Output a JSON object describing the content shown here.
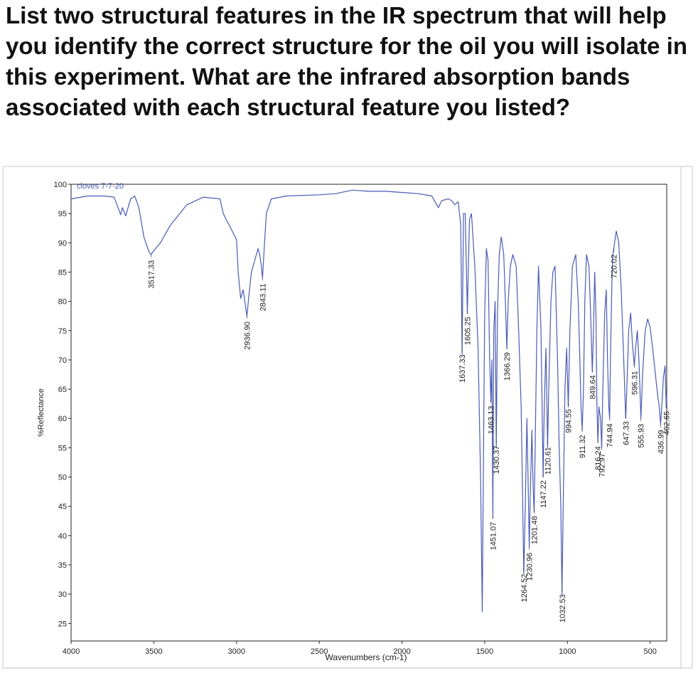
{
  "question": "List two structural features in the IR spectrum that will help you identify the correct structure for the oil you will isolate in this experiment. What are the infrared absorption bands associated with each structural feature you listed?",
  "colors": {
    "trace": "#4a5bb5",
    "axis": "#222222",
    "sample_label": "#4a5bb5",
    "frame": "#d9d9d9"
  },
  "chart_data": {
    "type": "line",
    "sample_label": "cloves 7-7-20",
    "xlabel": "Wavenumbers (cm-1)",
    "ylabel": "%Reflectance",
    "xlim": [
      4000,
      400
    ],
    "ylim": [
      22,
      100
    ],
    "x_reversed": true,
    "grid": false,
    "x_ticks": [
      4000,
      3500,
      3000,
      2500,
      2000,
      1500,
      1000,
      500
    ],
    "y_ticks": [
      100,
      95,
      90,
      85,
      80,
      75,
      70,
      65,
      60,
      55,
      50,
      45,
      40,
      35,
      30,
      25
    ],
    "peak_labels": [
      {
        "wn": 3517.33,
        "label": "3517.33"
      },
      {
        "wn": 2936.9,
        "label": "2936.90"
      },
      {
        "wn": 2843.11,
        "label": "2843.11"
      },
      {
        "wn": 1637.33,
        "label": "1637.33"
      },
      {
        "wn": 1605.25,
        "label": "1605.25"
      },
      {
        "wn": 1463.13,
        "label": "1463.13"
      },
      {
        "wn": 1451.07,
        "label": "1451.07"
      },
      {
        "wn": 1430.37,
        "label": "1430.37"
      },
      {
        "wn": 1366.29,
        "label": "1366.29"
      },
      {
        "wn": 1264.52,
        "label": "1264.52"
      },
      {
        "wn": 1230.96,
        "label": "1230.96"
      },
      {
        "wn": 1201.48,
        "label": "1201.48"
      },
      {
        "wn": 1147.22,
        "label": "1147.22"
      },
      {
        "wn": 1120.61,
        "label": "1120.61"
      },
      {
        "wn": 1032.53,
        "label": "1032.53"
      },
      {
        "wn": 994.55,
        "label": "994.55"
      },
      {
        "wn": 911.32,
        "label": "911.32"
      },
      {
        "wn": 849.64,
        "label": "849.64"
      },
      {
        "wn": 816.24,
        "label": "816.24"
      },
      {
        "wn": 792.97,
        "label": "792.97"
      },
      {
        "wn": 744.94,
        "label": "744.94"
      },
      {
        "wn": 720.02,
        "label": "720.02"
      },
      {
        "wn": 647.33,
        "label": "647.33"
      },
      {
        "wn": 596.31,
        "label": "596.31"
      },
      {
        "wn": 555.93,
        "label": "555.93"
      },
      {
        "wn": 436.99,
        "label": "436.99"
      },
      {
        "wn": 402.65,
        "label": "402.65"
      }
    ],
    "spectrum": [
      [
        4000,
        97.5
      ],
      [
        3900,
        98.0
      ],
      [
        3800,
        98.0
      ],
      [
        3740,
        97.8
      ],
      [
        3700,
        94.8
      ],
      [
        3690,
        96.0
      ],
      [
        3670,
        94.6
      ],
      [
        3640,
        97.5
      ],
      [
        3615,
        98.0
      ],
      [
        3590,
        96.0
      ],
      [
        3560,
        91.0
      ],
      [
        3530,
        88.5
      ],
      [
        3517,
        88.0
      ],
      [
        3490,
        89.0
      ],
      [
        3460,
        90.0
      ],
      [
        3400,
        93.0
      ],
      [
        3300,
        96.5
      ],
      [
        3200,
        97.8
      ],
      [
        3100,
        97.5
      ],
      [
        3080,
        95.0
      ],
      [
        3060,
        93.8
      ],
      [
        3040,
        92.8
      ],
      [
        3000,
        90.5
      ],
      [
        2990,
        85.0
      ],
      [
        2975,
        80.5
      ],
      [
        2960,
        82.0
      ],
      [
        2950,
        80.0
      ],
      [
        2937,
        77.5
      ],
      [
        2925,
        81.0
      ],
      [
        2910,
        85.0
      ],
      [
        2890,
        87.0
      ],
      [
        2870,
        89.0
      ],
      [
        2860,
        88.0
      ],
      [
        2850,
        86.0
      ],
      [
        2843,
        84.0
      ],
      [
        2835,
        88.0
      ],
      [
        2820,
        95.0
      ],
      [
        2790,
        97.5
      ],
      [
        2700,
        98.0
      ],
      [
        2500,
        98.2
      ],
      [
        2400,
        98.4
      ],
      [
        2300,
        99.0
      ],
      [
        2200,
        98.8
      ],
      [
        2100,
        98.8
      ],
      [
        2000,
        98.6
      ],
      [
        1900,
        98.4
      ],
      [
        1820,
        98.0
      ],
      [
        1800,
        97.0
      ],
      [
        1780,
        96.0
      ],
      [
        1760,
        97.2
      ],
      [
        1720,
        97.5
      ],
      [
        1700,
        97.2
      ],
      [
        1680,
        96.5
      ],
      [
        1660,
        97.0
      ],
      [
        1645,
        93.0
      ],
      [
        1637,
        71.0
      ],
      [
        1628,
        95.0
      ],
      [
        1618,
        95.0
      ],
      [
        1605,
        78.0
      ],
      [
        1592,
        94.0
      ],
      [
        1580,
        95.0
      ],
      [
        1560,
        86.0
      ],
      [
        1540,
        72.0
      ],
      [
        1525,
        50.0
      ],
      [
        1515,
        27.0
      ],
      [
        1507,
        55.0
      ],
      [
        1500,
        78.0
      ],
      [
        1490,
        89.0
      ],
      [
        1480,
        87.0
      ],
      [
        1470,
        70.0
      ],
      [
        1463,
        63.0
      ],
      [
        1457,
        70.0
      ],
      [
        1451,
        43.0
      ],
      [
        1445,
        75.0
      ],
      [
        1437,
        80.0
      ],
      [
        1430,
        55.0
      ],
      [
        1423,
        78.0
      ],
      [
        1412,
        88.0
      ],
      [
        1400,
        91.0
      ],
      [
        1385,
        88.0
      ],
      [
        1375,
        80.0
      ],
      [
        1366,
        72.0
      ],
      [
        1358,
        80.0
      ],
      [
        1345,
        86.0
      ],
      [
        1330,
        88.0
      ],
      [
        1310,
        86.0
      ],
      [
        1295,
        75.0
      ],
      [
        1280,
        62.0
      ],
      [
        1264,
        33.5
      ],
      [
        1255,
        45.0
      ],
      [
        1245,
        60.0
      ],
      [
        1238,
        50.0
      ],
      [
        1231,
        38.0
      ],
      [
        1224,
        48.0
      ],
      [
        1215,
        58.0
      ],
      [
        1207,
        48.0
      ],
      [
        1201,
        44.0
      ],
      [
        1195,
        55.0
      ],
      [
        1185,
        75.0
      ],
      [
        1175,
        86.0
      ],
      [
        1160,
        75.0
      ],
      [
        1147,
        50.0
      ],
      [
        1140,
        62.0
      ],
      [
        1130,
        72.0
      ],
      [
        1125,
        64.0
      ],
      [
        1120,
        55.0
      ],
      [
        1113,
        65.0
      ],
      [
        1100,
        80.0
      ],
      [
        1088,
        85.0
      ],
      [
        1075,
        86.0
      ],
      [
        1060,
        70.0
      ],
      [
        1050,
        55.0
      ],
      [
        1040,
        45.0
      ],
      [
        1033,
        30.0
      ],
      [
        1027,
        42.0
      ],
      [
        1015,
        65.0
      ],
      [
        1005,
        72.0
      ],
      [
        995,
        62.0
      ],
      [
        985,
        75.0
      ],
      [
        970,
        86.0
      ],
      [
        950,
        88.0
      ],
      [
        935,
        80.0
      ],
      [
        925,
        70.0
      ],
      [
        918,
        62.0
      ],
      [
        911,
        58.0
      ],
      [
        903,
        65.0
      ],
      [
        895,
        80.0
      ],
      [
        885,
        88.0
      ],
      [
        870,
        86.0
      ],
      [
        860,
        78.0
      ],
      [
        850,
        68.0
      ],
      [
        843,
        75.0
      ],
      [
        835,
        85.0
      ],
      [
        828,
        78.0
      ],
      [
        822,
        62.0
      ],
      [
        816,
        56.0
      ],
      [
        810,
        62.0
      ],
      [
        800,
        60.0
      ],
      [
        793,
        55.0
      ],
      [
        786,
        65.0
      ],
      [
        775,
        78.0
      ],
      [
        765,
        82.0
      ],
      [
        758,
        70.0
      ],
      [
        750,
        62.0
      ],
      [
        745,
        60.0
      ],
      [
        739,
        72.0
      ],
      [
        730,
        85.0
      ],
      [
        725,
        88.0
      ],
      [
        720,
        89.0
      ],
      [
        705,
        92.0
      ],
      [
        690,
        90.0
      ],
      [
        675,
        82.0
      ],
      [
        660,
        70.0
      ],
      [
        648,
        60.0
      ],
      [
        640,
        66.0
      ],
      [
        630,
        75.0
      ],
      [
        618,
        78.0
      ],
      [
        608,
        73.0
      ],
      [
        596,
        69.0
      ],
      [
        588,
        72.0
      ],
      [
        578,
        75.0
      ],
      [
        568,
        70.0
      ],
      [
        556,
        60.0
      ],
      [
        545,
        68.0
      ],
      [
        530,
        75.0
      ],
      [
        515,
        77.0
      ],
      [
        500,
        75.5
      ],
      [
        485,
        72.0
      ],
      [
        470,
        68.0
      ],
      [
        455,
        64.0
      ],
      [
        445,
        62.0
      ],
      [
        437,
        59.0
      ],
      [
        428,
        63.0
      ],
      [
        420,
        67.0
      ],
      [
        410,
        69.0
      ],
      [
        403,
        62.0
      ],
      [
        400,
        64.0
      ]
    ]
  }
}
